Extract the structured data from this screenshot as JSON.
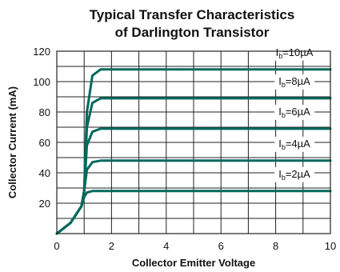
{
  "chart_data": {
    "type": "line",
    "title": [
      "Typical Transfer Characteristics",
      "of Darlington Transistor"
    ],
    "xlabel": "Collector Emitter Voltage",
    "ylabel": "Collector Current (mA)",
    "xlim": [
      0,
      10
    ],
    "ylim": [
      0,
      120
    ],
    "xticks": [
      0,
      2,
      4,
      6,
      8,
      10
    ],
    "yticks": [
      20,
      40,
      60,
      80,
      100,
      120
    ],
    "grid": true,
    "line_color": "#00695c",
    "series": [
      {
        "label_main": "I",
        "label_sub": "b",
        "label_rest": "=2µA",
        "saturation": 28,
        "x": [
          0,
          0.5,
          0.9,
          1.0,
          1.1,
          1.3,
          1.6,
          10
        ],
        "y": [
          0,
          7,
          18,
          24,
          27,
          28,
          28,
          28
        ]
      },
      {
        "label_main": "I",
        "label_sub": "b",
        "label_rest": "=4µA",
        "saturation": 48,
        "x": [
          0,
          0.5,
          0.9,
          1.0,
          1.1,
          1.3,
          1.6,
          10
        ],
        "y": [
          0,
          7,
          18,
          28,
          42,
          47,
          48,
          48
        ]
      },
      {
        "label_main": "I",
        "label_sub": "b",
        "label_rest": "=6µA",
        "saturation": 69,
        "x": [
          0,
          0.5,
          0.9,
          1.0,
          1.1,
          1.3,
          1.6,
          10
        ],
        "y": [
          0,
          7,
          18,
          28,
          58,
          67,
          69,
          69
        ]
      },
      {
        "label_main": "I",
        "label_sub": "b",
        "label_rest": "=8µA",
        "saturation": 89,
        "x": [
          0,
          0.5,
          0.9,
          1.0,
          1.1,
          1.3,
          1.6,
          10
        ],
        "y": [
          0,
          7,
          18,
          28,
          70,
          86,
          89,
          89
        ]
      },
      {
        "label_main": "I",
        "label_sub": "b",
        "label_rest": "=10µA",
        "saturation": 108,
        "x": [
          0,
          0.5,
          0.9,
          1.0,
          1.1,
          1.3,
          1.6,
          10
        ],
        "y": [
          0,
          7,
          18,
          28,
          80,
          104,
          108,
          108
        ]
      }
    ]
  }
}
